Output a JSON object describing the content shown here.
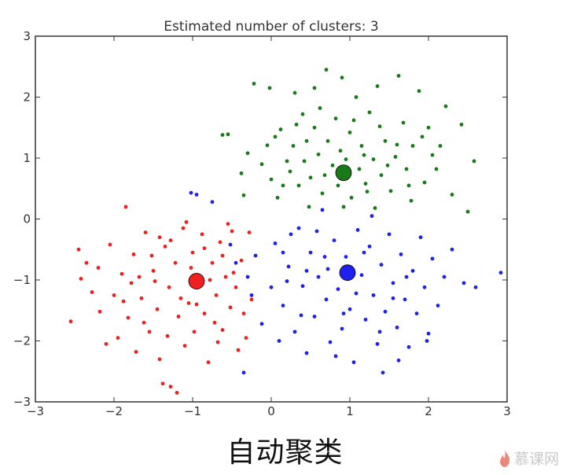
{
  "chart_data": {
    "type": "scatter",
    "title": "Estimated number of clusters: 3",
    "xlabel": "",
    "ylabel": "",
    "xlim": [
      -3,
      3
    ],
    "ylim": [
      -3,
      3
    ],
    "xticks": [
      "−3",
      "−2",
      "−1",
      "0",
      "1",
      "2",
      "3"
    ],
    "yticks": [
      "3",
      "2",
      "1",
      "0",
      "−1",
      "−2",
      "−3"
    ],
    "grid": false,
    "series": [
      {
        "color": "#1a7a1a",
        "center": [
          0.92,
          0.76
        ],
        "points": [
          [
            -0.62,
            1.38
          ],
          [
            -0.55,
            1.39
          ],
          [
            -0.38,
            0.75
          ],
          [
            -0.35,
            0.39
          ],
          [
            -0.3,
            1.08
          ],
          [
            -0.22,
            2.22
          ],
          [
            -0.05,
            1.21
          ],
          [
            -0.02,
            2.15
          ],
          [
            0.0,
            0.65
          ],
          [
            0.08,
            0.35
          ],
          [
            0.12,
            1.47
          ],
          [
            0.2,
            0.95
          ],
          [
            0.24,
            0.78
          ],
          [
            0.28,
            1.2
          ],
          [
            0.3,
            2.07
          ],
          [
            0.35,
            0.55
          ],
          [
            0.4,
            1.72
          ],
          [
            0.45,
            1.28
          ],
          [
            0.5,
            0.68
          ],
          [
            0.55,
            1.5
          ],
          [
            0.55,
            2.15
          ],
          [
            0.6,
            1.06
          ],
          [
            0.65,
            0.42
          ],
          [
            0.7,
            2.45
          ],
          [
            0.72,
            1.28
          ],
          [
            0.78,
            0.88
          ],
          [
            0.82,
            1.65
          ],
          [
            0.85,
            0.55
          ],
          [
            0.9,
            2.32
          ],
          [
            0.95,
            0.98
          ],
          [
            1.0,
            1.42
          ],
          [
            1.02,
            0.35
          ],
          [
            1.08,
            2.0
          ],
          [
            1.12,
            0.82
          ],
          [
            1.15,
            1.2
          ],
          [
            1.2,
            0.58
          ],
          [
            1.25,
            1.75
          ],
          [
            1.3,
            0.98
          ],
          [
            1.35,
            2.18
          ],
          [
            1.4,
            0.72
          ],
          [
            1.45,
            1.28
          ],
          [
            1.52,
            0.46
          ],
          [
            1.58,
            1.02
          ],
          [
            1.62,
            2.35
          ],
          [
            1.68,
            1.58
          ],
          [
            1.72,
            0.82
          ],
          [
            1.8,
            1.2
          ],
          [
            1.88,
            2.1
          ],
          [
            1.95,
            0.6
          ],
          [
            2.0,
            1.5
          ],
          [
            2.1,
            0.82
          ],
          [
            2.15,
            1.2
          ],
          [
            2.22,
            1.85
          ],
          [
            2.3,
            0.4
          ],
          [
            2.42,
            1.55
          ],
          [
            2.5,
            0.12
          ],
          [
            2.58,
            0.95
          ],
          [
            -0.12,
            0.9
          ],
          [
            0.05,
            1.35
          ],
          [
            0.15,
            0.55
          ],
          [
            0.32,
            1.55
          ],
          [
            0.42,
            0.95
          ],
          [
            0.62,
            1.82
          ],
          [
            0.68,
            0.72
          ],
          [
            0.88,
            1.12
          ],
          [
            1.05,
            1.62
          ],
          [
            1.18,
            1.05
          ],
          [
            1.22,
            0.45
          ],
          [
            1.38,
            1.52
          ],
          [
            1.48,
            0.88
          ],
          [
            1.6,
            1.22
          ],
          [
            1.75,
            0.55
          ],
          [
            1.92,
            1.35
          ],
          [
            2.05,
            1.05
          ],
          [
            0.48,
            0.2
          ],
          [
            0.92,
            0.2
          ],
          [
            1.32,
            0.18
          ],
          [
            1.78,
            0.3
          ]
        ]
      },
      {
        "color": "#2020ee",
        "center": [
          0.97,
          -0.88
        ],
        "points": [
          [
            -1.02,
            0.43
          ],
          [
            -0.95,
            0.4
          ],
          [
            -0.75,
            0.28
          ],
          [
            -0.52,
            -0.42
          ],
          [
            -0.45,
            -0.72
          ],
          [
            -0.35,
            -2.52
          ],
          [
            -0.3,
            -0.95
          ],
          [
            -0.25,
            -1.25
          ],
          [
            -0.2,
            -0.6
          ],
          [
            -0.12,
            -1.72
          ],
          [
            0.0,
            -1.12
          ],
          [
            0.05,
            -0.4
          ],
          [
            0.1,
            -2.0
          ],
          [
            0.15,
            -1.42
          ],
          [
            0.22,
            -0.78
          ],
          [
            0.3,
            -1.85
          ],
          [
            0.35,
            -0.15
          ],
          [
            0.4,
            -1.1
          ],
          [
            0.45,
            -2.2
          ],
          [
            0.5,
            -0.55
          ],
          [
            0.55,
            -1.6
          ],
          [
            0.6,
            -0.95
          ],
          [
            0.65,
            0.15
          ],
          [
            0.7,
            -1.32
          ],
          [
            0.75,
            -2.02
          ],
          [
            0.8,
            -0.35
          ],
          [
            0.85,
            -1.15
          ],
          [
            0.9,
            -1.8
          ],
          [
            0.95,
            -0.62
          ],
          [
            1.0,
            -1.48
          ],
          [
            1.05,
            -2.35
          ],
          [
            1.1,
            -0.18
          ],
          [
            1.15,
            -0.92
          ],
          [
            1.2,
            -1.65
          ],
          [
            1.25,
            -0.45
          ],
          [
            1.3,
            -1.25
          ],
          [
            1.35,
            -2.05
          ],
          [
            1.4,
            -0.75
          ],
          [
            1.45,
            -1.52
          ],
          [
            1.5,
            -0.25
          ],
          [
            1.55,
            -1.05
          ],
          [
            1.6,
            -1.78
          ],
          [
            1.65,
            -0.58
          ],
          [
            1.7,
            -1.32
          ],
          [
            1.75,
            -2.1
          ],
          [
            1.8,
            -0.85
          ],
          [
            1.85,
            -1.55
          ],
          [
            1.9,
            -0.3
          ],
          [
            1.95,
            -1.12
          ],
          [
            2.0,
            -1.88
          ],
          [
            2.05,
            -0.65
          ],
          [
            2.12,
            -1.42
          ],
          [
            2.2,
            -0.95
          ],
          [
            2.3,
            -0.5
          ],
          [
            2.45,
            -1.05
          ],
          [
            2.6,
            -1.12
          ],
          [
            2.92,
            -0.88
          ],
          [
            1.42,
            -2.52
          ],
          [
            0.25,
            -0.25
          ],
          [
            0.58,
            -0.2
          ],
          [
            0.82,
            -2.25
          ],
          [
            1.28,
            0.05
          ],
          [
            1.62,
            -2.32
          ],
          [
            1.98,
            -2.0
          ],
          [
            0.15,
            -0.55
          ],
          [
            0.38,
            -1.58
          ],
          [
            0.68,
            -0.62
          ],
          [
            1.08,
            -1.22
          ],
          [
            1.38,
            -1.85
          ],
          [
            1.72,
            -0.95
          ],
          [
            0.72,
            -0.82
          ],
          [
            1.18,
            -0.55
          ],
          [
            0.45,
            -0.85
          ],
          [
            0.92,
            -1.55
          ],
          [
            1.55,
            -1.3
          ],
          [
            0.2,
            -1.02
          ]
        ]
      },
      {
        "color": "#ee2020",
        "center": [
          -0.95,
          -1.02
        ],
        "points": [
          [
            -2.55,
            -1.68
          ],
          [
            -2.45,
            -0.5
          ],
          [
            -2.42,
            -0.98
          ],
          [
            -2.35,
            -0.72
          ],
          [
            -2.2,
            -0.8
          ],
          [
            -2.18,
            -1.52
          ],
          [
            -2.1,
            -2.05
          ],
          [
            -2.05,
            -0.42
          ],
          [
            -2.0,
            -1.25
          ],
          [
            -1.95,
            -1.95
          ],
          [
            -1.9,
            -0.9
          ],
          [
            -1.85,
            0.2
          ],
          [
            -1.82,
            -1.62
          ],
          [
            -1.75,
            -0.58
          ],
          [
            -1.72,
            -2.18
          ],
          [
            -1.65,
            -1.3
          ],
          [
            -1.6,
            -0.22
          ],
          [
            -1.55,
            -1.85
          ],
          [
            -1.5,
            -0.85
          ],
          [
            -1.45,
            -1.48
          ],
          [
            -1.42,
            -2.3
          ],
          [
            -1.35,
            -0.45
          ],
          [
            -1.3,
            -1.12
          ],
          [
            -1.28,
            -2.75
          ],
          [
            -1.22,
            -0.72
          ],
          [
            -1.18,
            -1.6
          ],
          [
            -1.12,
            -0.15
          ],
          [
            -1.1,
            -2.08
          ],
          [
            -1.05,
            -1.38
          ],
          [
            -1.0,
            -0.55
          ],
          [
            -0.98,
            -1.85
          ],
          [
            -0.92,
            -0.95
          ],
          [
            -0.88,
            -0.25
          ],
          [
            -0.85,
            -1.55
          ],
          [
            -0.8,
            -2.35
          ],
          [
            -0.75,
            -0.72
          ],
          [
            -0.7,
            -1.25
          ],
          [
            -0.65,
            -0.38
          ],
          [
            -0.62,
            -1.82
          ],
          [
            -0.58,
            -0.95
          ],
          [
            -0.52,
            -1.45
          ],
          [
            -0.5,
            -0.2
          ],
          [
            -0.45,
            -1.12
          ],
          [
            -0.42,
            -2.15
          ],
          [
            -0.38,
            -0.68
          ],
          [
            -0.35,
            -1.55
          ],
          [
            -0.28,
            -0.22
          ],
          [
            -0.25,
            -1.32
          ],
          [
            -1.38,
            -2.7
          ],
          [
            -1.2,
            -2.85
          ],
          [
            -1.48,
            -1.02
          ],
          [
            -1.68,
            -0.95
          ],
          [
            -1.28,
            -0.35
          ],
          [
            -1.02,
            -0.8
          ],
          [
            -0.78,
            -1.0
          ],
          [
            -0.62,
            -0.6
          ],
          [
            -1.88,
            -1.35
          ],
          [
            -1.52,
            -0.6
          ],
          [
            -1.15,
            -1.3
          ],
          [
            -0.95,
            -1.4
          ],
          [
            -0.72,
            -1.7
          ],
          [
            -0.48,
            -0.88
          ],
          [
            -2.28,
            -1.2
          ],
          [
            -1.78,
            -1.05
          ],
          [
            -1.42,
            -0.3
          ],
          [
            -1.08,
            -0.05
          ],
          [
            -0.85,
            -0.48
          ],
          [
            -0.55,
            -0.08
          ],
          [
            -1.62,
            -1.7
          ],
          [
            -1.32,
            -1.92
          ],
          [
            -0.68,
            -2.02
          ],
          [
            -0.32,
            -1.95
          ]
        ]
      }
    ]
  },
  "caption": "自动聚类",
  "watermark": "慕课网"
}
